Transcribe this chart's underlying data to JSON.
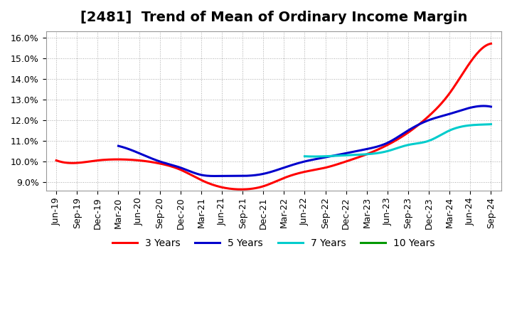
{
  "title": "[2481]  Trend of Mean of Ordinary Income Margin",
  "ylabel": "",
  "ylim": [
    0.086,
    0.163
  ],
  "yticks": [
    0.09,
    0.1,
    0.11,
    0.12,
    0.13,
    0.14,
    0.15,
    0.16
  ],
  "background_color": "#ffffff",
  "grid_color": "#aaaaaa",
  "series": {
    "3 Years": {
      "color": "#ff0000",
      "x_indices": [
        0,
        1,
        2,
        3,
        4,
        5,
        6,
        7,
        8,
        9,
        10,
        11,
        12,
        13,
        14,
        15,
        16,
        17,
        18,
        19,
        20,
        21
      ],
      "y": [
        0.1005,
        0.0993,
        0.1005,
        0.101,
        0.1005,
        0.099,
        0.096,
        0.091,
        0.0875,
        0.0865,
        0.088,
        0.092,
        0.095,
        0.097,
        0.1,
        0.1035,
        0.108,
        0.114,
        0.122,
        0.133,
        0.148,
        0.157
      ]
    },
    "5 Years": {
      "color": "#0000cc",
      "x_indices": [
        3,
        4,
        5,
        6,
        7,
        8,
        9,
        10,
        11,
        12,
        13,
        14,
        15,
        16,
        17,
        18,
        19,
        20,
        21
      ],
      "y": [
        0.1075,
        0.104,
        0.1,
        0.097,
        0.0935,
        0.093,
        0.093,
        0.094,
        0.097,
        0.1,
        0.102,
        0.104,
        0.106,
        0.109,
        0.115,
        0.12,
        0.123,
        0.126,
        0.1265
      ]
    },
    "7 Years": {
      "color": "#00cccc",
      "x_indices": [
        12,
        13,
        14,
        15,
        16,
        17,
        18,
        19,
        20,
        21
      ],
      "y": [
        0.1025,
        0.1025,
        0.103,
        0.1035,
        0.105,
        0.108,
        0.11,
        0.115,
        0.1175,
        0.118
      ]
    },
    "10 Years": {
      "color": "#009900",
      "x_indices": [],
      "y": []
    }
  },
  "x_labels": [
    "Jun-19",
    "Sep-19",
    "Dec-19",
    "Mar-20",
    "Jun-20",
    "Sep-20",
    "Dec-20",
    "Mar-21",
    "Jun-21",
    "Sep-21",
    "Dec-21",
    "Mar-22",
    "Jun-22",
    "Sep-22",
    "Dec-22",
    "Mar-23",
    "Jun-23",
    "Sep-23",
    "Dec-23",
    "Mar-24",
    "Jun-24",
    "Sep-24"
  ],
  "legend_labels": [
    "3 Years",
    "5 Years",
    "7 Years",
    "10 Years"
  ],
  "legend_colors": [
    "#ff0000",
    "#0000cc",
    "#00cccc",
    "#009900"
  ],
  "title_fontsize": 14,
  "tick_fontsize": 9,
  "line_width": 2.2
}
